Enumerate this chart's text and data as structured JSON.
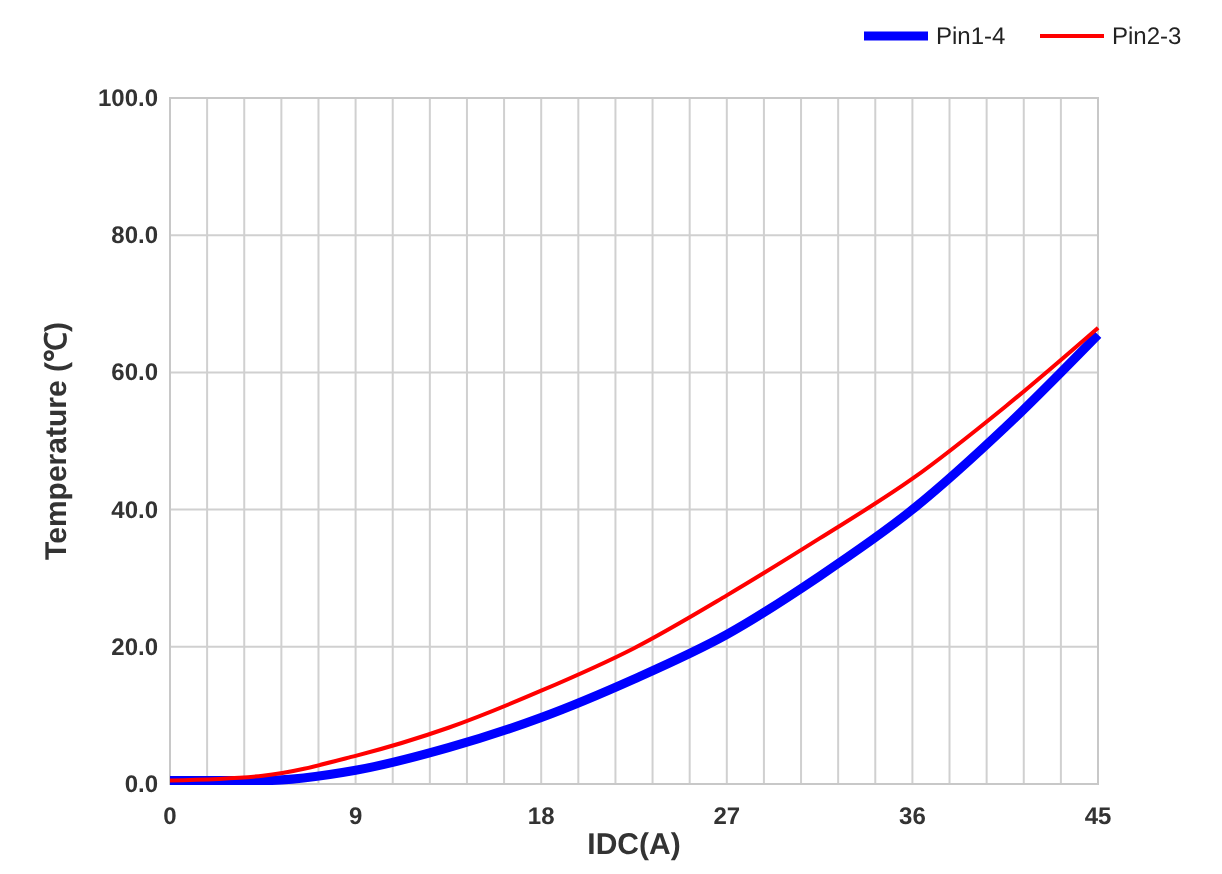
{
  "chart_data": {
    "type": "line",
    "xlabel": "IDC(A)",
    "ylabel": "Temperature (℃)",
    "xlim": [
      0,
      45
    ],
    "ylim": [
      0,
      100
    ],
    "xticks": [
      0,
      {
        "value": 1.8,
        "label": null
      },
      {
        "value": 3.6,
        "label": null
      },
      {
        "value": 5.4,
        "label": null
      },
      {
        "value": 7.2,
        "label": null
      },
      9,
      {
        "value": 10.8,
        "label": null
      },
      {
        "value": 12.6,
        "label": null
      },
      {
        "value": 14.4,
        "label": null
      },
      {
        "value": 16.2,
        "label": null
      },
      18,
      {
        "value": 19.8,
        "label": null
      },
      {
        "value": 21.6,
        "label": null
      },
      {
        "value": 23.4,
        "label": null
      },
      {
        "value": 25.2,
        "label": null
      },
      27,
      {
        "value": 28.8,
        "label": null
      },
      {
        "value": 30.6,
        "label": null
      },
      {
        "value": 32.4,
        "label": null
      },
      {
        "value": 34.2,
        "label": null
      },
      36,
      {
        "value": 37.8,
        "label": null
      },
      {
        "value": 39.6,
        "label": null
      },
      {
        "value": 41.4,
        "label": null
      },
      {
        "value": 43.2,
        "label": null
      },
      45
    ],
    "yticks": [
      {
        "value": 0,
        "label": "0.0"
      },
      {
        "value": 20,
        "label": "20.0"
      },
      {
        "value": 40,
        "label": "40.0"
      },
      {
        "value": 60,
        "label": "60.0"
      },
      {
        "value": 80,
        "label": "80.0"
      },
      {
        "value": 100,
        "label": "100.0"
      }
    ],
    "x": [
      0,
      4.5,
      9,
      13.5,
      18,
      22.5,
      27,
      31.5,
      36,
      40.5,
      45
    ],
    "series": [
      {
        "name": "Pin1-4",
        "color": "#0000ff",
        "values": [
          0.5,
          0.5,
          2,
          5.3,
          9.7,
          15.3,
          21.8,
          30.3,
          40,
          52,
          65.5
        ]
      },
      {
        "name": "Pin2-3",
        "color": "#ff0000",
        "values": [
          0.5,
          1.2,
          4.1,
          8.2,
          13.6,
          19.8,
          27.5,
          35.8,
          44.5,
          55,
          66.5
        ]
      }
    ],
    "grid": true,
    "legend": "top right"
  }
}
